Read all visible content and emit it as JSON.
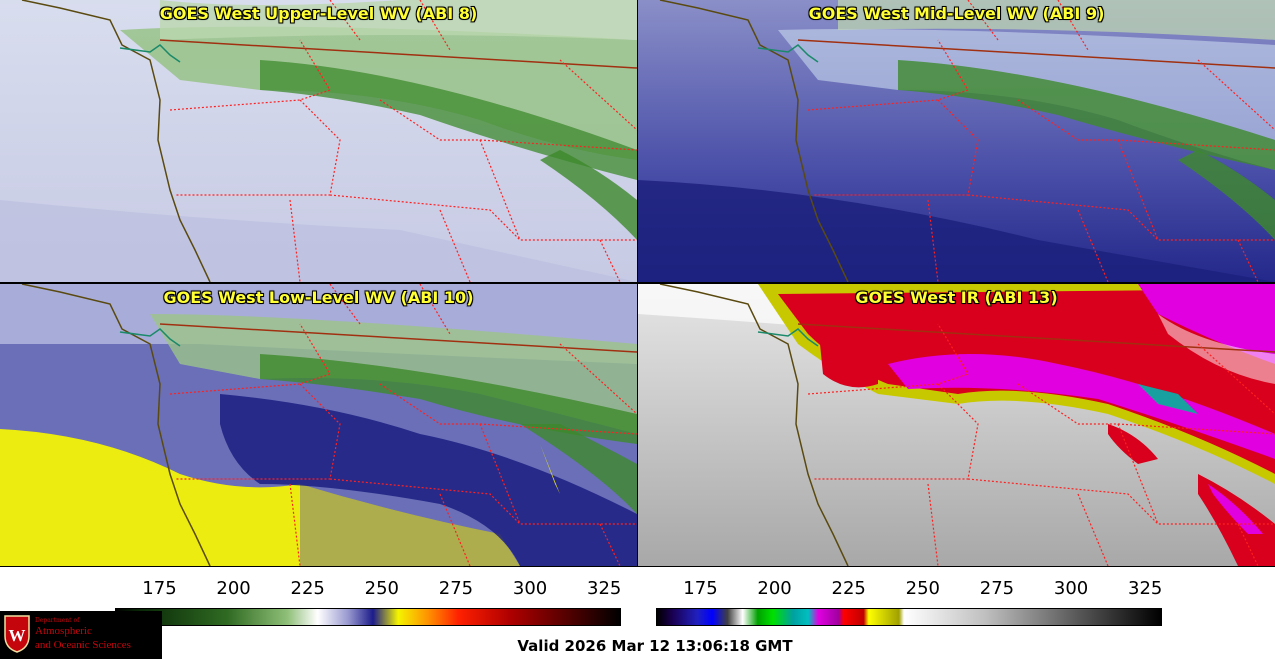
{
  "panels": [
    {
      "title": "GOES West Upper-Level WV (ABI 8)"
    },
    {
      "title": "GOES West Mid-Level WV (ABI 9)"
    },
    {
      "title": "GOES West Low-Level WV (ABI 10)"
    },
    {
      "title": "GOES West IR (ABI 13)"
    }
  ],
  "colorbars": [
    {
      "ticks": [
        "175",
        "200",
        "225",
        "250",
        "275",
        "300",
        "325"
      ],
      "min": 160,
      "max": 330,
      "tick_values": [
        175,
        200,
        225,
        250,
        275,
        300,
        325
      ]
    },
    {
      "ticks": [
        "175",
        "200",
        "225",
        "250",
        "275",
        "300",
        "325"
      ],
      "min": 160,
      "max": 330,
      "tick_values": [
        175,
        200,
        225,
        250,
        275,
        300,
        325
      ]
    }
  ],
  "logo": {
    "dept": "Department of",
    "line1": "Atmospheric",
    "line2": "and Oceanic Sciences",
    "crest_letter": "W"
  },
  "valid_time": "Valid 2026 Mar 12 13:06:18 GMT",
  "colors": {
    "wv_green": "#3f8a2e",
    "wv_blue": "#1a1a8a",
    "wv_yellow": "#f2f200",
    "ir_red": "#d8001c",
    "ir_magenta": "#e600e6",
    "border_red": "#ff2020",
    "coast": "#5a4a10",
    "intl_border": "#a03010"
  }
}
